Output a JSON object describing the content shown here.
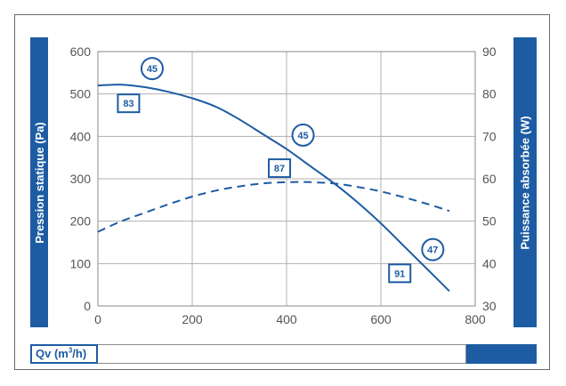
{
  "chart_data": {
    "type": "line",
    "xlabel_prefix": "Qv (m",
    "xlabel_sup": "3",
    "xlabel_suffix": "/h)",
    "ylabel_left": "Pression statique (Pa)",
    "ylabel_right": "Puissance absorbée (W)",
    "xlim": [
      0,
      800
    ],
    "ylim_left": [
      0,
      600
    ],
    "ylim_right": [
      30,
      90
    ],
    "x_ticks": [
      "0",
      "200",
      "400",
      "600",
      "800"
    ],
    "y_left_ticks": [
      "0",
      "100",
      "200",
      "300",
      "400",
      "500",
      "600"
    ],
    "y_right_ticks": [
      "30",
      "40",
      "50",
      "60",
      "70",
      "80",
      "90"
    ],
    "grid": true,
    "series": [
      {
        "axis": "left",
        "style": "solid",
        "x": [
          0,
          50,
          100,
          150,
          200,
          250,
          300,
          350,
          400,
          450,
          500,
          550,
          600,
          650,
          700,
          745
        ],
        "y": [
          520,
          522,
          516,
          505,
          490,
          470,
          440,
          405,
          370,
          330,
          290,
          245,
          195,
          140,
          85,
          35
        ]
      },
      {
        "axis": "right",
        "style": "dashed",
        "x": [
          0,
          50,
          100,
          150,
          200,
          250,
          300,
          350,
          400,
          450,
          500,
          550,
          600,
          650,
          700,
          745
        ],
        "y": [
          47.5,
          50.0,
          52.0,
          54.0,
          55.8,
          57.2,
          58.2,
          58.9,
          59.2,
          59.2,
          58.9,
          58.1,
          57.0,
          55.6,
          54.0,
          52.4
        ]
      }
    ],
    "annotations": [
      {
        "shape": "circle",
        "text": "45",
        "x": 115,
        "y_left": 560
      },
      {
        "shape": "square",
        "text": "83",
        "x": 65,
        "y_left": 478
      },
      {
        "shape": "circle",
        "text": "45",
        "x": 435,
        "y_left": 403
      },
      {
        "shape": "square",
        "text": "87",
        "x": 385,
        "y_left": 325
      },
      {
        "shape": "circle",
        "text": "47",
        "x": 710,
        "y_left": 133
      },
      {
        "shape": "square",
        "text": "91",
        "x": 640,
        "y_left": 77
      }
    ],
    "colors": {
      "accent": "#1d5ca3",
      "grid": "#b0b0b0",
      "frame": "#6a6a6a",
      "tick_text": "#555555"
    }
  }
}
